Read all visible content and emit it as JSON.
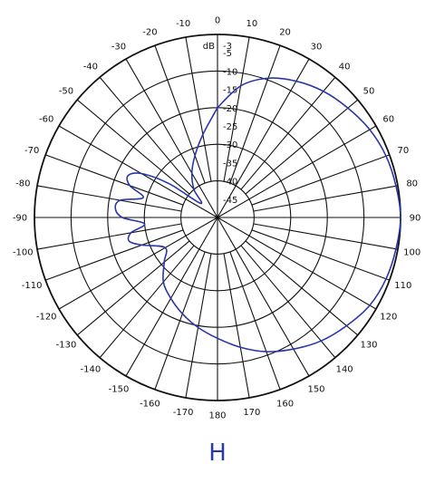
{
  "chart_data": {
    "type": "polar",
    "plane_label": "H",
    "unit_label": "dB",
    "radial_ticks_db": [
      -3,
      -5,
      -10,
      -15,
      -20,
      -25,
      -30,
      -35,
      -40,
      -45
    ],
    "angle_ticks": [
      0,
      10,
      20,
      30,
      40,
      50,
      60,
      70,
      80,
      90,
      100,
      110,
      120,
      130,
      140,
      150,
      160,
      170,
      180,
      -170,
      -160,
      -150,
      -140,
      -130,
      -120,
      -110,
      -100,
      -90,
      -80,
      -70,
      -60,
      -50,
      -40,
      -30,
      -20,
      -10
    ],
    "series": [
      {
        "color": "#2b36a8",
        "points": [
          {
            "angle": 0,
            "db": -20
          },
          {
            "angle": 10,
            "db": -13.5
          },
          {
            "angle": 20,
            "db": -9.5
          },
          {
            "angle": 30,
            "db": -7
          },
          {
            "angle": 40,
            "db": -5
          },
          {
            "angle": 50,
            "db": -3.5
          },
          {
            "angle": 60,
            "db": -2
          },
          {
            "angle": 70,
            "db": -1
          },
          {
            "angle": 80,
            "db": -0.5
          },
          {
            "angle": 90,
            "db": 0
          },
          {
            "angle": 100,
            "db": -0.5
          },
          {
            "angle": 110,
            "db": -1
          },
          {
            "angle": 120,
            "db": -2
          },
          {
            "angle": 130,
            "db": -4
          },
          {
            "angle": 140,
            "db": -6
          },
          {
            "angle": 150,
            "db": -8.5
          },
          {
            "angle": 160,
            "db": -11
          },
          {
            "angle": 170,
            "db": -14
          },
          {
            "angle": 180,
            "db": -17
          },
          {
            "angle": -170,
            "db": -19.5
          },
          {
            "angle": -160,
            "db": -22
          },
          {
            "angle": -150,
            "db": -24.5
          },
          {
            "angle": -140,
            "db": -27
          },
          {
            "angle": -130,
            "db": -31
          },
          {
            "angle": -120,
            "db": -33.5
          },
          {
            "angle": -110,
            "db": -28
          },
          {
            "angle": -105,
            "db": -25
          },
          {
            "angle": -100,
            "db": -26
          },
          {
            "angle": -95,
            "db": -30
          },
          {
            "angle": -90,
            "db": -24
          },
          {
            "angle": -85,
            "db": -22
          },
          {
            "angle": -80,
            "db": -23
          },
          {
            "angle": -75,
            "db": -29
          },
          {
            "angle": -70,
            "db": -24.5
          },
          {
            "angle": -65,
            "db": -23
          },
          {
            "angle": -60,
            "db": -26
          },
          {
            "angle": -55,
            "db": -34
          },
          {
            "angle": -50,
            "db": -44
          },
          {
            "angle": -40,
            "db": -40
          },
          {
            "angle": -30,
            "db": -36
          },
          {
            "angle": -20,
            "db": -32
          },
          {
            "angle": -10,
            "db": -27
          },
          {
            "angle": 0,
            "db": -20
          }
        ]
      }
    ]
  }
}
